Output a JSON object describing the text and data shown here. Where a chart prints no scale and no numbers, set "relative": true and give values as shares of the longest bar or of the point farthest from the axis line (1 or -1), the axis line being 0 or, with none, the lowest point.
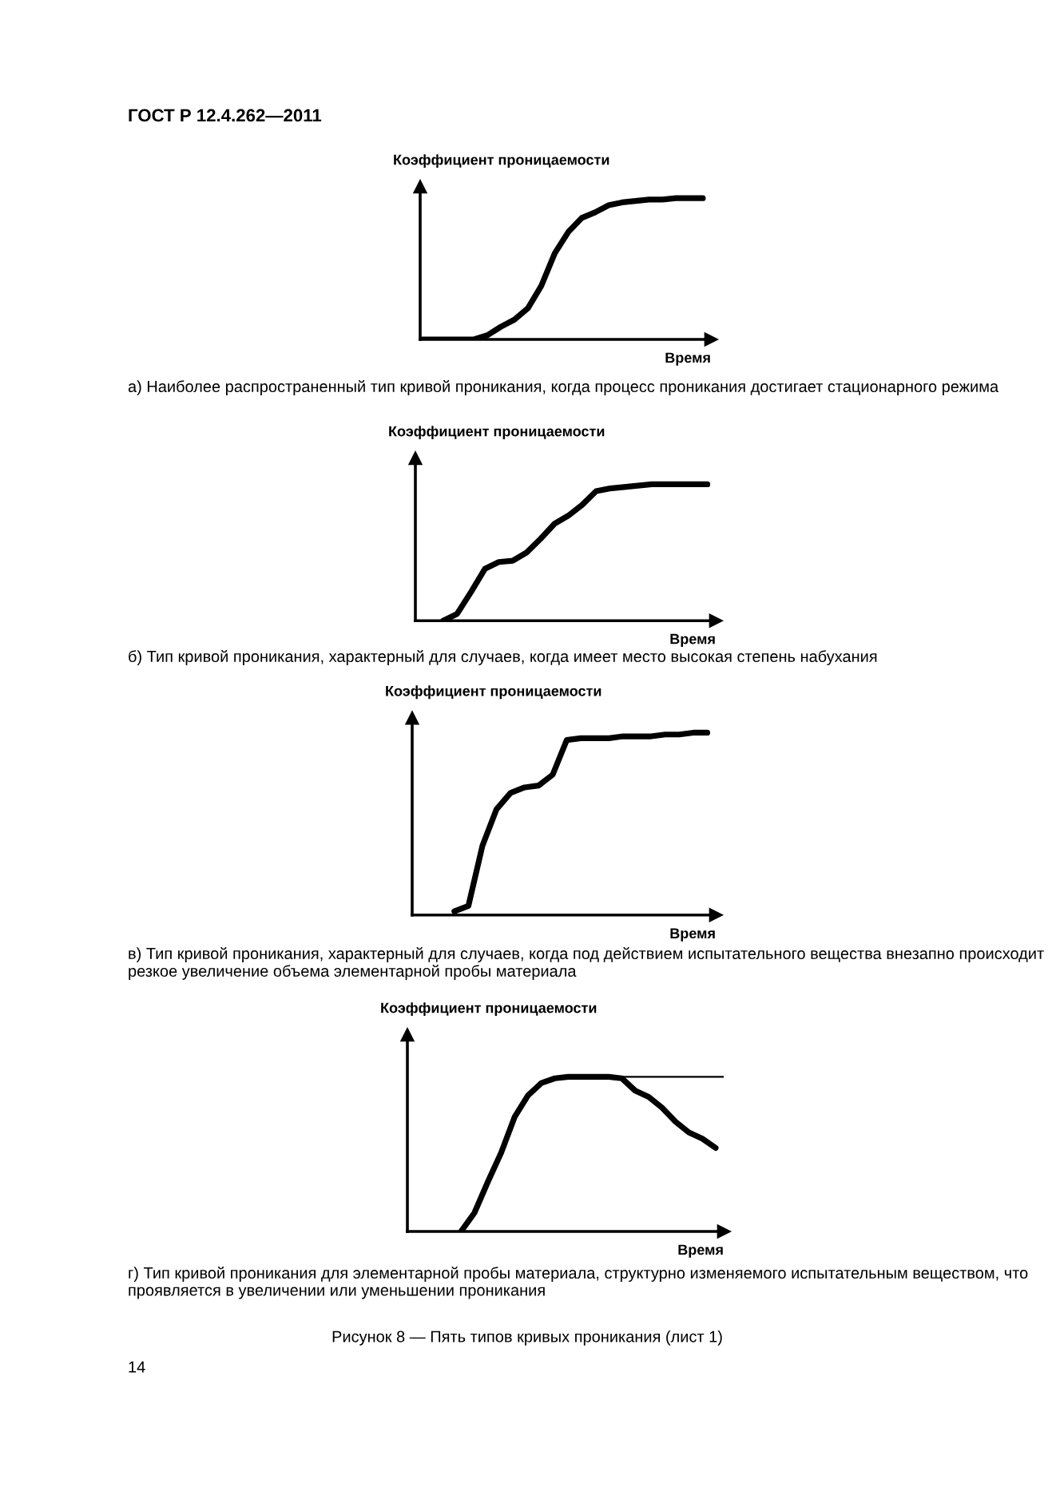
{
  "chart_data": [
    {
      "type": "line",
      "relative": true,
      "ylabel": "Коэффициент проницаемости",
      "xlabel": "Время",
      "color": "#000000",
      "annotations": [
        "ГОСТ Р 12.4.262—2011",
        "а) Наиболее распространенный тип кривой проникания, когда процесс проникания достигает стационарного режима"
      ],
      "categories": [
        null,
        null,
        null,
        null,
        null,
        null,
        null,
        null,
        null,
        null,
        null,
        null,
        null,
        null,
        null,
        null,
        null,
        null,
        null,
        null,
        null,
        null
      ],
      "values": [
        0,
        0,
        0,
        0,
        0,
        0.03,
        0.09,
        0.14,
        0.22,
        0.38,
        0.61,
        0.76,
        0.86,
        0.9,
        0.95,
        0.97,
        0.98,
        0.99,
        0.99,
        1,
        1,
        1
      ]
    },
    {
      "type": "line",
      "relative": true,
      "ylabel": "Коэффициент проницаемости",
      "xlabel": "Время",
      "color": "#000000",
      "annotations": [
        "б) Тип кривой проникания, характерный для случаев, когда имеет место высокая степень набухания"
      ],
      "categories": [
        null,
        null,
        null,
        null,
        null,
        null,
        null,
        null,
        null,
        null,
        null,
        null,
        null,
        null,
        null,
        null,
        null,
        null,
        null,
        null,
        null,
        null
      ],
      "values": [
        null,
        null,
        0,
        0.05,
        0.21,
        0.38,
        0.43,
        0.44,
        0.5,
        0.6,
        0.71,
        0.77,
        0.85,
        0.95,
        0.97,
        0.98,
        0.99,
        1,
        1,
        1,
        1,
        1
      ]
    },
    {
      "type": "line",
      "relative": true,
      "ylabel": "Коэффициент проницаемости",
      "xlabel": "Время",
      "color": "#000000",
      "annotations": [
        "в) Тип кривой проникания, характерный для случаев, когда под действием испытательного вещества внезапно происходит резкое увеличение объема элементарной пробы материала"
      ],
      "categories": [
        null,
        null,
        null,
        null,
        null,
        null,
        null,
        null,
        null,
        null,
        null,
        null,
        null,
        null,
        null,
        null,
        null,
        null,
        null,
        null,
        null,
        null
      ],
      "values": [
        null,
        null,
        null,
        0.02,
        0.05,
        0.38,
        0.58,
        0.67,
        0.7,
        0.71,
        0.77,
        0.96,
        0.97,
        0.97,
        0.97,
        0.98,
        0.98,
        0.98,
        0.99,
        0.99,
        1,
        1
      ]
    },
    {
      "type": "line",
      "relative": true,
      "ylabel": "Коэффициент проницаемости",
      "xlabel": "Время",
      "color": "#000000",
      "annotations": [
        "г) Тип кривой проникания для элементарной пробы материала, структурно изменяемого испытательным веществом, что проявляется в увеличении или уменьшении проникания",
        "Рисунок 8 — Пять типов кривых проникания (лист 1)",
        "14"
      ],
      "ref_lines": [
        {
          "axis": "y",
          "value": 1,
          "label": null,
          "color": "#000000"
        }
      ],
      "categories": [
        null,
        null,
        null,
        null,
        null,
        null,
        null,
        null,
        null,
        null,
        null,
        null,
        null,
        null,
        null,
        null,
        null,
        null,
        null,
        null,
        null,
        null,
        null,
        null
      ],
      "values": [
        null,
        null,
        null,
        null,
        0,
        0.12,
        0.32,
        0.51,
        0.74,
        0.88,
        0.96,
        0.99,
        1,
        1,
        1,
        1,
        0.99,
        0.91,
        0.87,
        0.8,
        0.71,
        0.64,
        0.6,
        0.54
      ]
    }
  ]
}
